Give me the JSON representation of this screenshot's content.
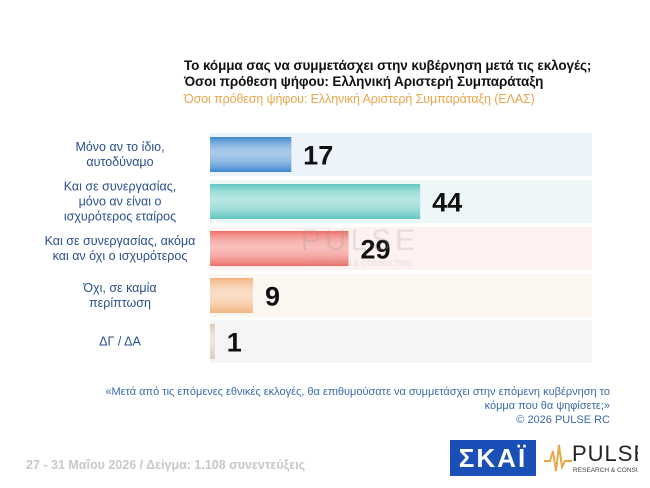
{
  "title": {
    "line1": "Το κόμμα σας να συμμετάσχει στην κυβέρνηση μετά τις εκλογές;",
    "line2": "Όσοι πρόθεση ψήφου: Ελληνική Αριστερή Συμπαράταξη"
  },
  "subtitle": "Όσοι πρόθεση ψήφου: Ελληνική Αριστερή Συμπαράταξη (ΕΛΑΣ)",
  "chart_data": {
    "type": "bar",
    "orientation": "horizontal",
    "categories": [
      [
        "Μόνο αν το ίδιο,",
        "αυτοδύναμο"
      ],
      [
        "Και σε συνεργασίας,",
        "μόνο αν είναι ο",
        "ισχυρότερος εταίρος"
      ],
      [
        "Και σε συνεργασίας, ακόμα",
        "και αν όχι ο ισχυρότερος"
      ],
      [
        "Όχι, σε καμία",
        "περίπτωση"
      ],
      [
        "ΔΓ / ΔΑ"
      ]
    ],
    "values": [
      17,
      44,
      29,
      9,
      1
    ],
    "xlim": [
      0,
      80
    ],
    "bar_colors": [
      "#3d86cf",
      "#5ec7bf",
      "#ee6e67",
      "#f3b47f",
      "#d9c8b4"
    ],
    "band_colors": [
      "#edf3fa",
      "#eef7f7",
      "#fdf1f1",
      "#fcf6f1",
      "#f5f5f5"
    ]
  },
  "footnote": {
    "question": "«Μετά από τις επόμενες εθνικές εκλογές, θα επιθυμούσατε να συμμετάσχει στην επόμενη κυβέρνηση το κόμμα που θα ψηφίσετε;»",
    "copyright": "©  2026  PULSE RC"
  },
  "fieldwork": "27 - 31  Μαΐου 2026  /  Δείγμα:  1.108 συνεντεύξεις",
  "logos": {
    "skai": "ΣΚΑΪ",
    "pulse": "PULSE",
    "pulse_tagline": "RESEARCH & CONSULTING"
  }
}
